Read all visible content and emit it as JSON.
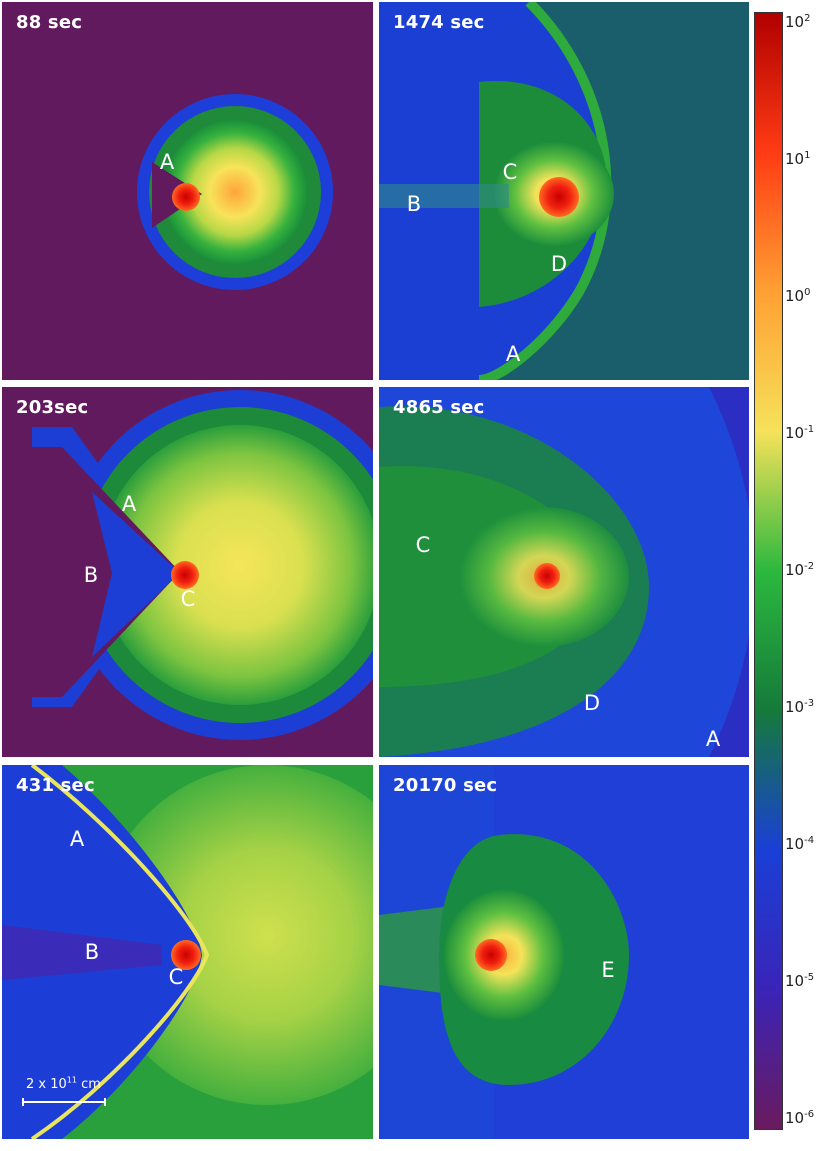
{
  "panels": [
    {
      "time": "88 sec",
      "labels": [
        {
          "text": "A"
        }
      ]
    },
    {
      "time": "1474 sec",
      "labels": [
        {
          "text": "C"
        },
        {
          "text": "B"
        },
        {
          "text": "D"
        },
        {
          "text": "A"
        }
      ]
    },
    {
      "time": "203sec",
      "labels": [
        {
          "text": "A"
        },
        {
          "text": "B"
        },
        {
          "text": "C"
        }
      ]
    },
    {
      "time": "4865 sec",
      "labels": [
        {
          "text": "C"
        },
        {
          "text": "D"
        },
        {
          "text": "A"
        }
      ]
    },
    {
      "time": "431 sec",
      "labels": [
        {
          "text": "A"
        },
        {
          "text": "B"
        },
        {
          "text": "C"
        }
      ]
    },
    {
      "time": "20170 sec",
      "labels": [
        {
          "text": "E"
        }
      ]
    }
  ],
  "scale_bar": {
    "base": "2 x 10",
    "exp": "11",
    "unit": "cm"
  },
  "colorbar": {
    "scale": "log",
    "ticks": [
      {
        "base": "10",
        "exp": "2"
      },
      {
        "base": "10",
        "exp": "1"
      },
      {
        "base": "10",
        "exp": "0"
      },
      {
        "base": "10",
        "exp": "-1"
      },
      {
        "base": "10",
        "exp": "-2"
      },
      {
        "base": "10",
        "exp": "-3"
      },
      {
        "base": "10",
        "exp": "-4"
      },
      {
        "base": "10",
        "exp": "-5"
      },
      {
        "base": "10",
        "exp": "-6"
      }
    ],
    "colors": [
      "#b00000",
      "#ff3b14",
      "#ffa033",
      "#f6e25a",
      "#2cb83e",
      "#157a3a",
      "#1a3fd6",
      "#3a24b8",
      "#6a1a5e"
    ]
  }
}
